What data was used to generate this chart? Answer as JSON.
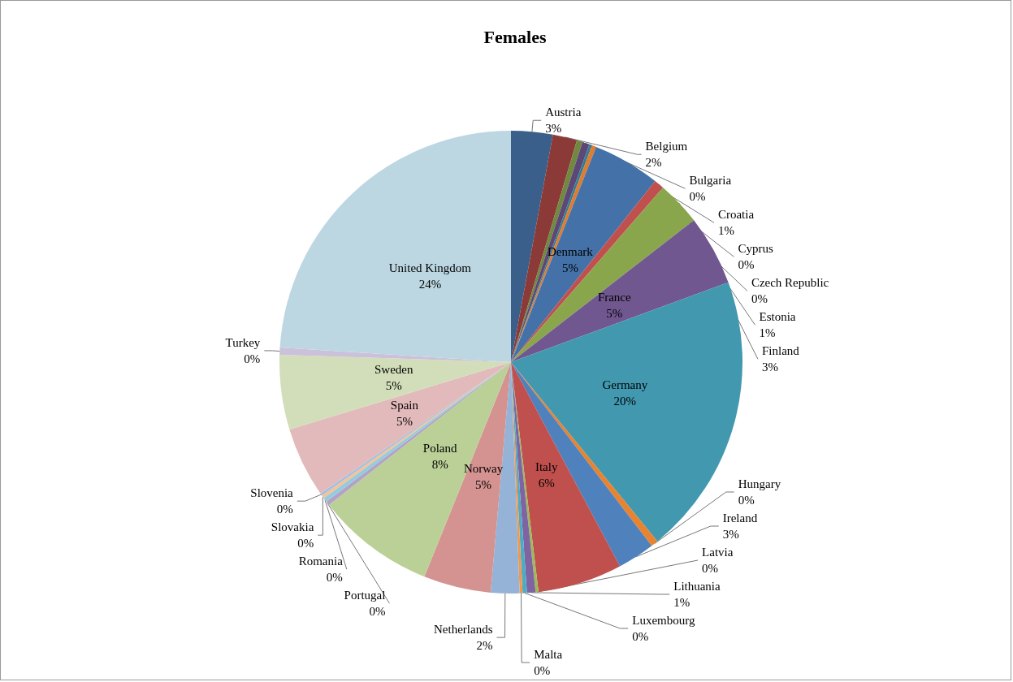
{
  "chart_data": {
    "type": "pie",
    "title": "Females",
    "categories": [
      "Austria",
      "Belgium",
      "Bulgaria",
      "Croatia",
      "Cyprus",
      "Czech Republic",
      "Denmark",
      "Estonia",
      "Finland",
      "France",
      "Germany",
      "Hungary",
      "Ireland",
      "Italy",
      "Latvia",
      "Lithuania",
      "Luxembourg",
      "Malta",
      "Netherlands",
      "Norway",
      "Poland",
      "Portugal",
      "Romania",
      "Slovakia",
      "Slovenia",
      "Spain",
      "Sweden",
      "Turkey",
      "United Kingdom"
    ],
    "values": [
      2.9,
      1.7,
      0.4,
      0.5,
      0.2,
      0.3,
      4.7,
      0.7,
      3.1,
      4.9,
      19.7,
      0.5,
      2.6,
      5.9,
      0.2,
      0.6,
      0.3,
      0.2,
      2.0,
      4.7,
      8.3,
      0.3,
      0.3,
      0.2,
      0.2,
      4.9,
      5.2,
      0.5,
      24.0
    ],
    "value_labels": [
      "3%",
      "2%",
      "0%",
      "1%",
      "0%",
      "0%",
      "5%",
      "1%",
      "3%",
      "5%",
      "20%",
      "0%",
      "3%",
      "6%",
      "0%",
      "1%",
      "0%",
      "0%",
      "2%",
      "5%",
      "8%",
      "0%",
      "0%",
      "0%",
      "0%",
      "5%",
      "5%",
      "0%",
      "24%"
    ],
    "colors": [
      "#3a5f8b",
      "#8b3a38",
      "#71893f",
      "#5c4776",
      "#357d91",
      "#e07b30",
      "#4472a8",
      "#c0504d",
      "#8aa64c",
      "#71578f",
      "#4198af",
      "#e8832f",
      "#4f81bd",
      "#c0504d",
      "#9bbb59",
      "#8064a2",
      "#4bacc6",
      "#f79646",
      "#95b3d7",
      "#d49290",
      "#bbd096",
      "#b3a2c7",
      "#93cddd",
      "#fac090",
      "#a7c0de",
      "#e2babb",
      "#d2deb9",
      "#ccc1da",
      "#bcd7e2"
    ]
  }
}
